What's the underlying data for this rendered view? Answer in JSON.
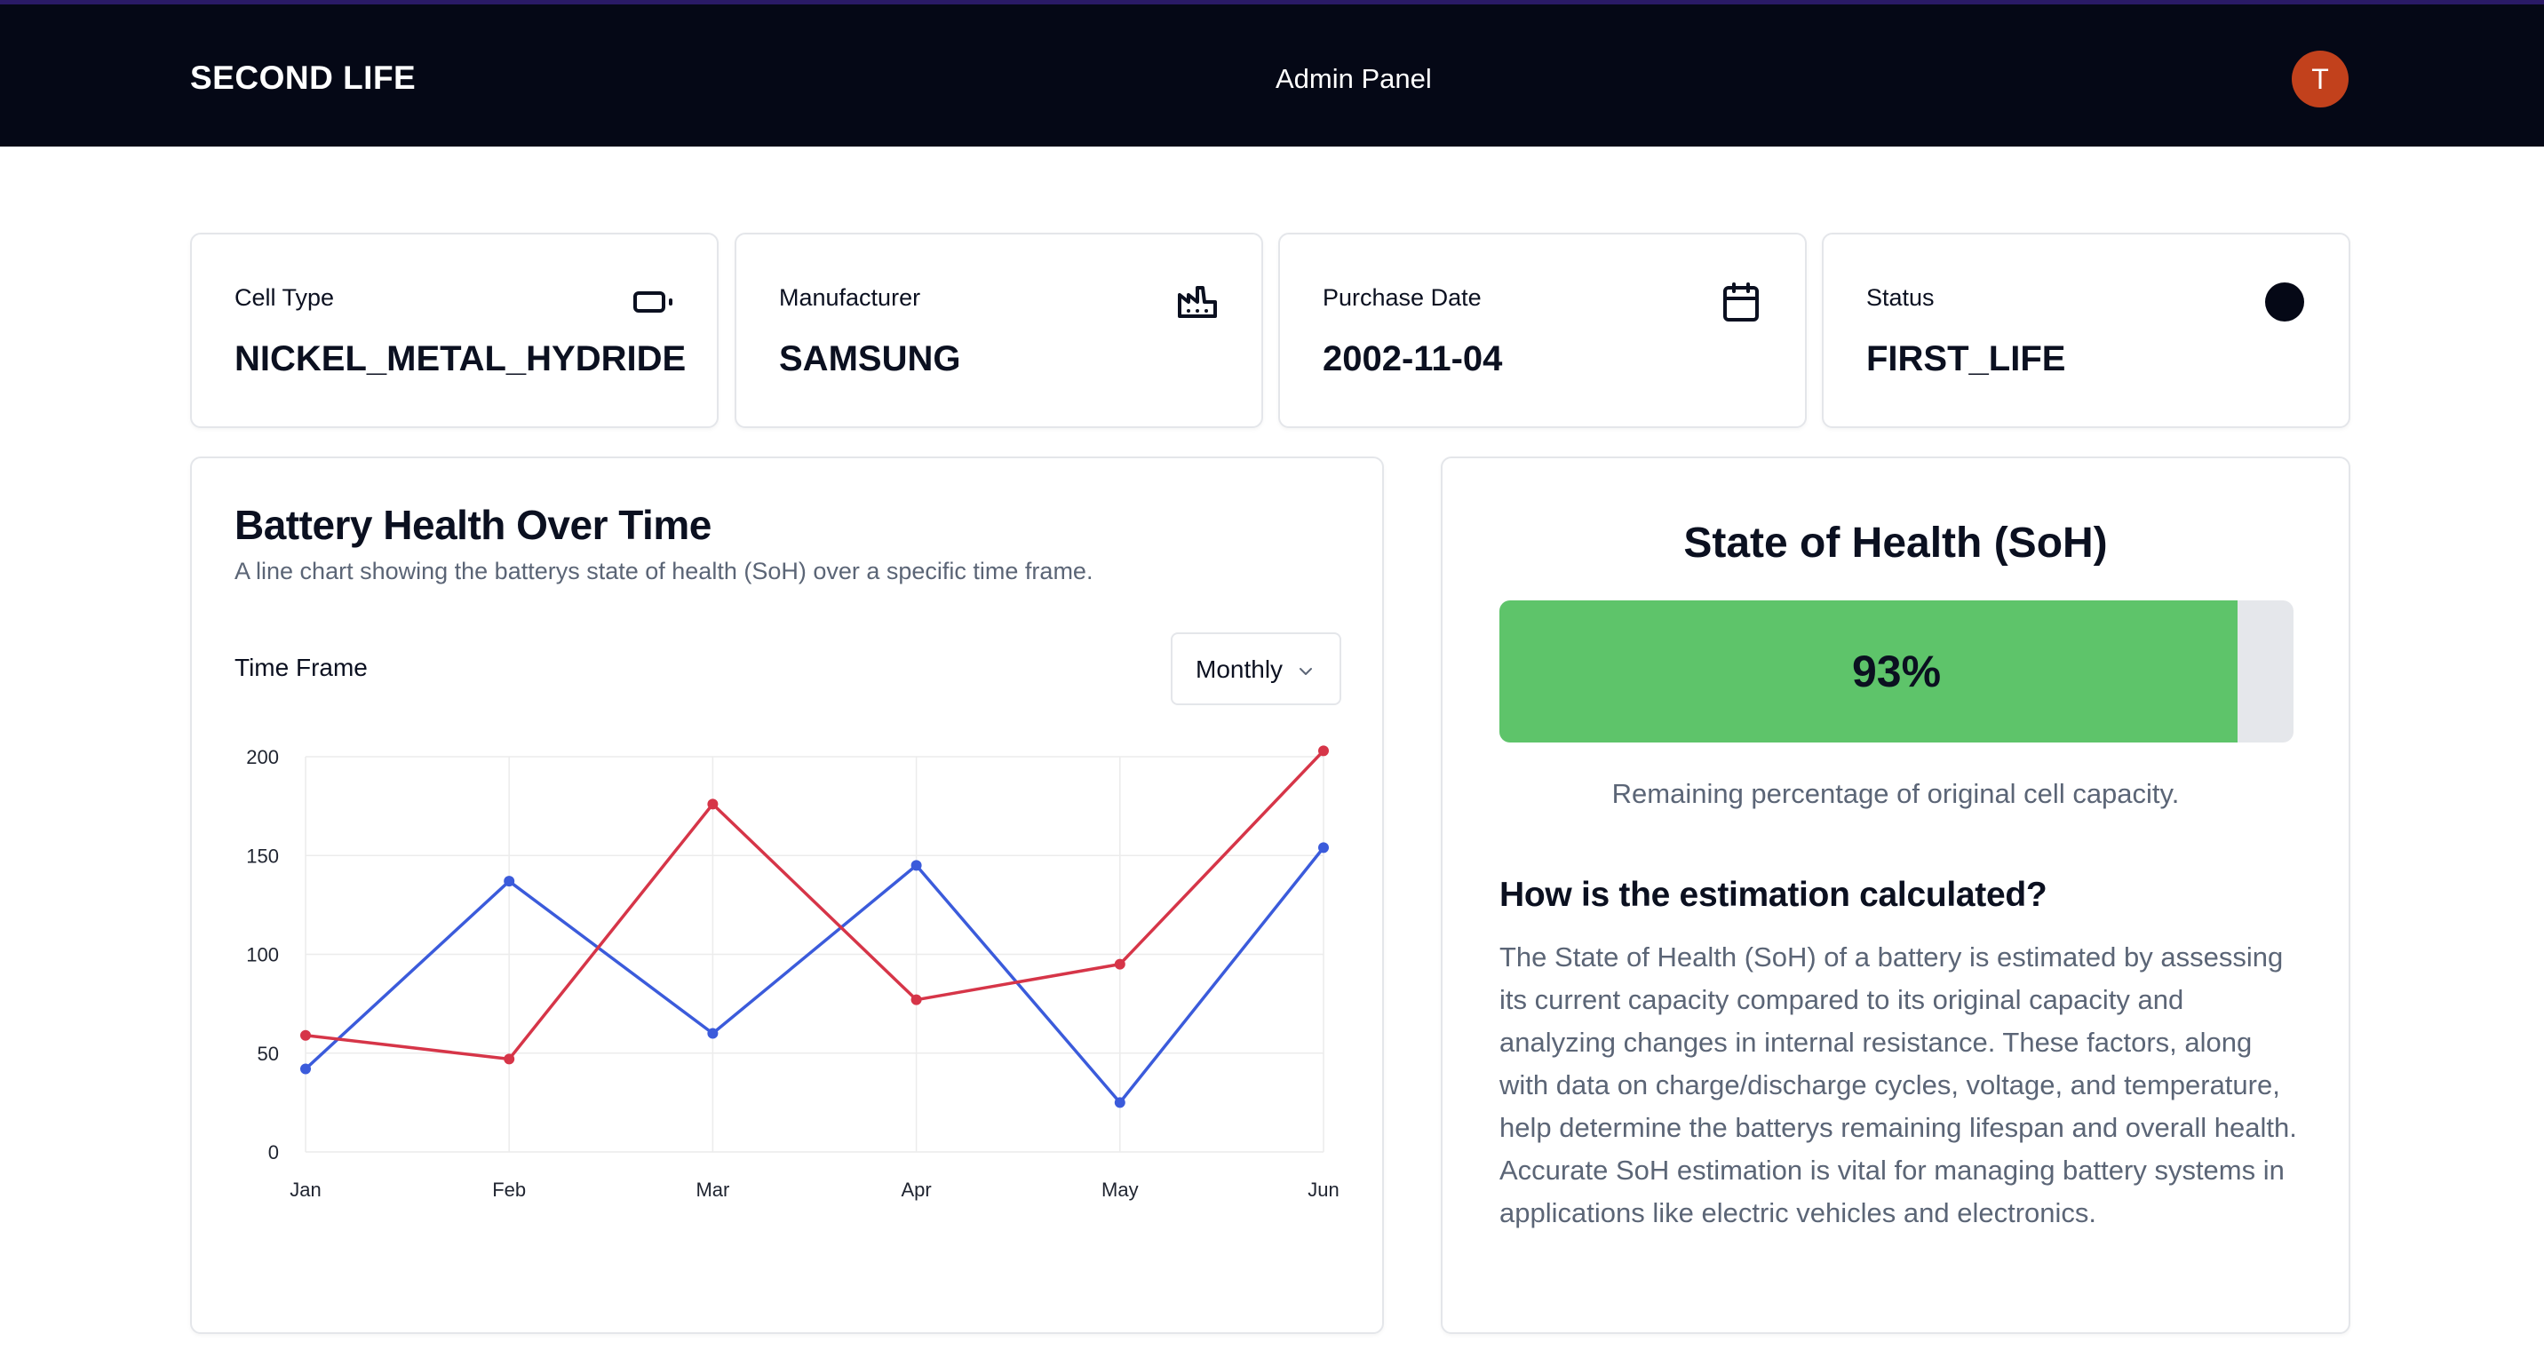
{
  "header": {
    "brand": "SECOND LIFE",
    "nav_link": "Admin Panel",
    "avatar_initial": "T",
    "avatar_color": "#c2411c"
  },
  "stats": [
    {
      "label": "Cell Type",
      "value": "NICKEL_METAL_HYDRIDE",
      "icon": "battery-icon"
    },
    {
      "label": "Manufacturer",
      "value": "SAMSUNG",
      "icon": "factory-icon"
    },
    {
      "label": "Purchase Date",
      "value": "2002-11-04",
      "icon": "calendar-icon"
    },
    {
      "label": "Status",
      "value": "FIRST_LIFE",
      "icon": "status-dot-icon"
    }
  ],
  "chart_card": {
    "title": "Battery Health Over Time",
    "subtitle": "A line chart showing the batterys state of health (SoH) over a specific time frame.",
    "timeframe_label": "Time Frame",
    "timeframe_selected": "Monthly"
  },
  "chart_data": {
    "type": "line",
    "categories": [
      "Jan",
      "Feb",
      "Mar",
      "Apr",
      "May",
      "Jun"
    ],
    "series": [
      {
        "values": [
          42,
          137,
          60,
          145,
          25,
          154
        ],
        "color": "#3b5bdb"
      },
      {
        "values": [
          59,
          47,
          176,
          77,
          95,
          203
        ],
        "color": "#d63548"
      }
    ],
    "ylim": [
      0,
      200
    ],
    "yticks": [
      0,
      50,
      100,
      150,
      200
    ],
    "grid": true,
    "legend": "none"
  },
  "soh": {
    "title": "State of Health (SoH)",
    "percent": 93,
    "value_label": "93%",
    "bar_color": "#5ec46a",
    "caption": "Remaining percentage of original cell capacity.",
    "explain_title": "How is the estimation calculated?",
    "explain_body": "The State of Health (SoH) of a battery is estimated by assessing its current capacity compared to its original capacity and analyzing changes in internal resistance. These factors, along with data on charge/discharge cycles, voltage, and temperature, help determine the batterys remaining lifespan and overall health. Accurate SoH estimation is vital for managing battery systems in applications like electric vehicles and electronics."
  }
}
